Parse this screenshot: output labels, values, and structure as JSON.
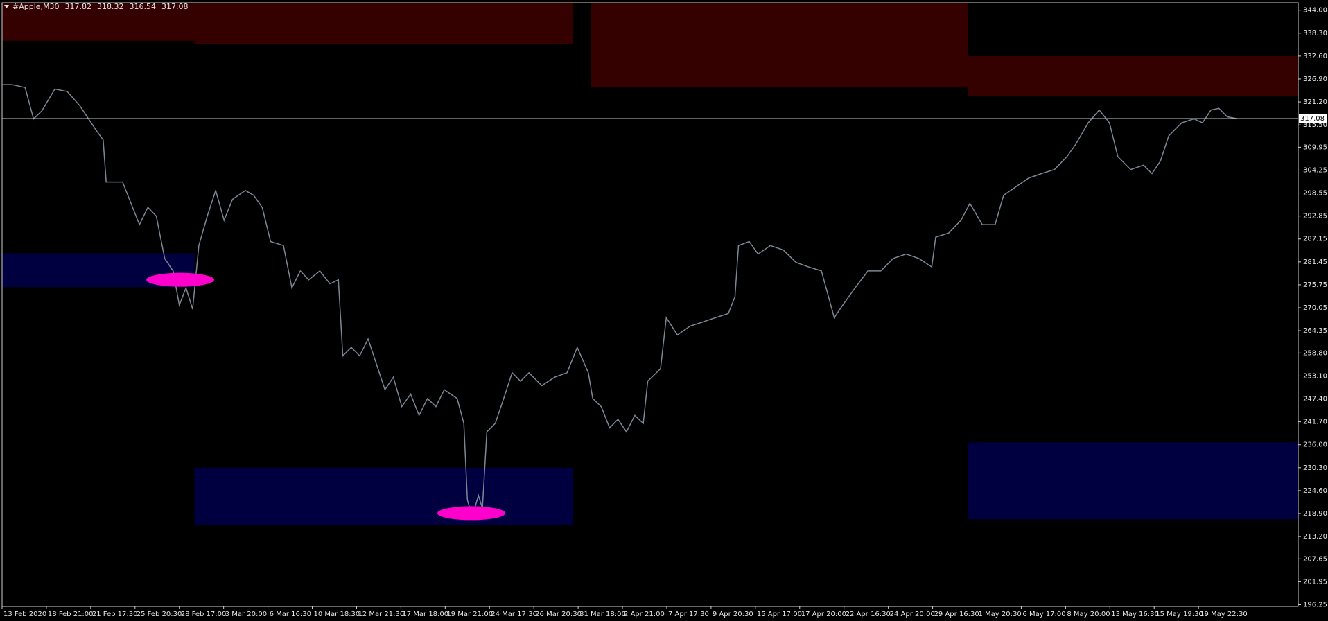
{
  "chart_data": {
    "type": "line",
    "symbol": "#Apple,M30",
    "ohlc": [
      317.82,
      318.32,
      316.54,
      317.08
    ],
    "color": "#7c8796",
    "xlim": [
      0,
      29.25
    ],
    "xticks": [
      {
        "value": 0,
        "label": "13 Feb 2020"
      },
      {
        "value": 1,
        "label": "18 Feb 21:00"
      },
      {
        "value": 2,
        "label": "21 Feb 17:30"
      },
      {
        "value": 3,
        "label": "25 Feb 20:30"
      },
      {
        "value": 4,
        "label": "28 Feb 17:00"
      },
      {
        "value": 5,
        "label": "3 Mar 20:00"
      },
      {
        "value": 6,
        "label": "6 Mar 16:30"
      },
      {
        "value": 7,
        "label": "10 Mar 18:30"
      },
      {
        "value": 8,
        "label": "12 Mar 21:30"
      },
      {
        "value": 9,
        "label": "17 Mar 18:00"
      },
      {
        "value": 10,
        "label": "19 Mar 21:00"
      },
      {
        "value": 11,
        "label": "24 Mar 17:30"
      },
      {
        "value": 12,
        "label": "26 Mar 20:30"
      },
      {
        "value": 13,
        "label": "31 Mar 18:00"
      },
      {
        "value": 14,
        "label": "2 Apr 21:00"
      },
      {
        "value": 15,
        "label": "7 Apr 17:30"
      },
      {
        "value": 16,
        "label": "9 Apr 20:30"
      },
      {
        "value": 17,
        "label": "15 Apr 17:00"
      },
      {
        "value": 18,
        "label": "17 Apr 20:00"
      },
      {
        "value": 19,
        "label": "22 Apr 16:30"
      },
      {
        "value": 20,
        "label": "24 Apr 20:00"
      },
      {
        "value": 21,
        "label": "29 Apr 16:30"
      },
      {
        "value": 22,
        "label": "1 May 20:30"
      },
      {
        "value": 23,
        "label": "6 May 17:00"
      },
      {
        "value": 24,
        "label": "8 May 20:00"
      },
      {
        "value": 25,
        "label": "13 May 16:30"
      },
      {
        "value": 26,
        "label": "15 May 19:30"
      },
      {
        "value": 27,
        "label": "19 May 22:30"
      }
    ],
    "ylim": [
      195.82,
      345.84
    ],
    "yticks": [
      {
        "value": 344,
        "label": "344.00"
      },
      {
        "value": 338.3,
        "label": "338.30"
      },
      {
        "value": 332.6,
        "label": "332.60"
      },
      {
        "value": 326.9,
        "label": "326.90"
      },
      {
        "value": 321.2,
        "label": "321.20"
      },
      {
        "value": 315.5,
        "label": "315.50"
      },
      309.95,
      304.25,
      298.55,
      292.85,
      287.15,
      281.45,
      275.75,
      270.05,
      264.35,
      {
        "value": 258.8,
        "label": "258.80"
      },
      {
        "value": 253.1,
        "label": "253.10"
      },
      {
        "value": 247.4,
        "label": "247.40"
      },
      {
        "value": 241.7,
        "label": "241.70"
      },
      {
        "value": 236,
        "label": "236.00"
      },
      {
        "value": 230.3,
        "label": "230.30"
      },
      {
        "value": 224.6,
        "label": "224.60"
      },
      {
        "value": 218.9,
        "label": "218.90"
      },
      {
        "value": 213.2,
        "label": "213.20"
      },
      207.65,
      201.95,
      196.25
    ],
    "x": [
      0,
      0.23,
      0.52,
      0.71,
      0.9,
      1.19,
      1.47,
      1.76,
      1.95,
      2.14,
      2.28,
      2.35,
      2.52,
      2.72,
      2.91,
      3.1,
      3.29,
      3.48,
      3.67,
      3.86,
      4,
      4.15,
      4.3,
      4.44,
      4.63,
      4.82,
      5.01,
      5.2,
      5.49,
      5.68,
      5.87,
      6.06,
      6.35,
      6.54,
      6.73,
      6.92,
      7.17,
      7.4,
      7.59,
      7.69,
      7.88,
      8.07,
      8.26,
      8.45,
      8.64,
      8.83,
      9.02,
      9.22,
      9.41,
      9.6,
      9.79,
      9.98,
      10.27,
      10.42,
      10.5,
      10.61,
      10.75,
      10.84,
      10.94,
      11.13,
      11.32,
      11.51,
      11.7,
      11.89,
      12.18,
      12.47,
      12.75,
      12.98,
      13.23,
      13.33,
      13.52,
      13.71,
      13.9,
      14.09,
      14.28,
      14.47,
      14.57,
      14.86,
      14.99,
      15.24,
      15.53,
      15.81,
      16.1,
      16.39,
      16.54,
      16.62,
      16.86,
      17.06,
      17.34,
      17.63,
      17.92,
      18.2,
      18.49,
      18.78,
      18.97,
      19.25,
      19.54,
      19.83,
      20.11,
      20.4,
      20.69,
      20.98,
      21.07,
      21.36,
      21.64,
      21.84,
      22.12,
      22.41,
      22.6,
      22.89,
      23.17,
      23.46,
      23.75,
      24.03,
      24.23,
      24.51,
      24.76,
      24.99,
      25.18,
      25.47,
      25.76,
      25.95,
      26.14,
      26.33,
      26.62,
      26.9,
      27.09,
      27.28,
      27.46,
      27.65,
      27.86
    ],
    "values": [
      325.5,
      325.5,
      324.8,
      317,
      319,
      324.4,
      323.8,
      320.2,
      317,
      313.9,
      311.8,
      301.3,
      301.3,
      301.3,
      296,
      290.7,
      295,
      292.8,
      282.3,
      279.2,
      270.7,
      275,
      269.7,
      285.5,
      292.8,
      299.2,
      291.8,
      297,
      299.2,
      298,
      295,
      286.5,
      285.5,
      275,
      279.2,
      277,
      279.2,
      276,
      277,
      258.1,
      260.2,
      258.1,
      262.3,
      256,
      249.7,
      252.8,
      245.5,
      248.6,
      243.3,
      247.5,
      245.5,
      249.7,
      247.5,
      241.3,
      222.3,
      218.1,
      223.4,
      220.2,
      239.2,
      241.3,
      247.5,
      253.9,
      251.8,
      253.9,
      250.7,
      252.8,
      253.9,
      260.2,
      253.9,
      247.5,
      245.5,
      240.2,
      242.3,
      239.2,
      243.3,
      241.3,
      251.8,
      254.9,
      267.6,
      263.3,
      265.5,
      266.5,
      267.6,
      268.6,
      272.8,
      285.5,
      286.5,
      283.4,
      285.5,
      284.4,
      281.3,
      280.2,
      279.2,
      267.6,
      270.7,
      275,
      279.2,
      279.2,
      282.3,
      283.4,
      282.3,
      280.2,
      287.6,
      288.6,
      291.8,
      296,
      290.7,
      290.7,
      298,
      300.2,
      302.3,
      303.4,
      304.4,
      307.6,
      310.7,
      316,
      319.2,
      316,
      307.6,
      304.4,
      305.5,
      303.4,
      306.5,
      312.8,
      316,
      317,
      316,
      319.2,
      319.6,
      317.5,
      317.08
    ],
    "zones": [
      {
        "color": "#350000",
        "x": [
          0,
          4.34
        ],
        "y": [
          336.4,
          345.84
        ]
      },
      {
        "color": "#350000",
        "x": [
          4.34,
          12.89
        ],
        "y": [
          335.6,
          345.84
        ]
      },
      {
        "color": "#350000",
        "x": [
          13.29,
          21.8
        ],
        "y": [
          324.8,
          345.84
        ]
      },
      {
        "color": "#350000",
        "x": [
          21.8,
          29.25
        ],
        "y": [
          322.7,
          332.6
        ]
      },
      {
        "color": "#000040",
        "x": [
          0,
          4.34
        ],
        "y": [
          275.2,
          283.6
        ]
      },
      {
        "color": "#000040",
        "x": [
          4.34,
          12.89
        ],
        "y": [
          216,
          230.3
        ]
      },
      {
        "color": "#000040",
        "x": [
          21.8,
          29.25
        ],
        "y": [
          217.5,
          236.6
        ]
      }
    ],
    "markers": [
      {
        "color": "#ff00cc",
        "x": 4.02,
        "y": 277
      },
      {
        "color": "#ff00cc",
        "x": 10.59,
        "y": 219
      }
    ]
  }
}
